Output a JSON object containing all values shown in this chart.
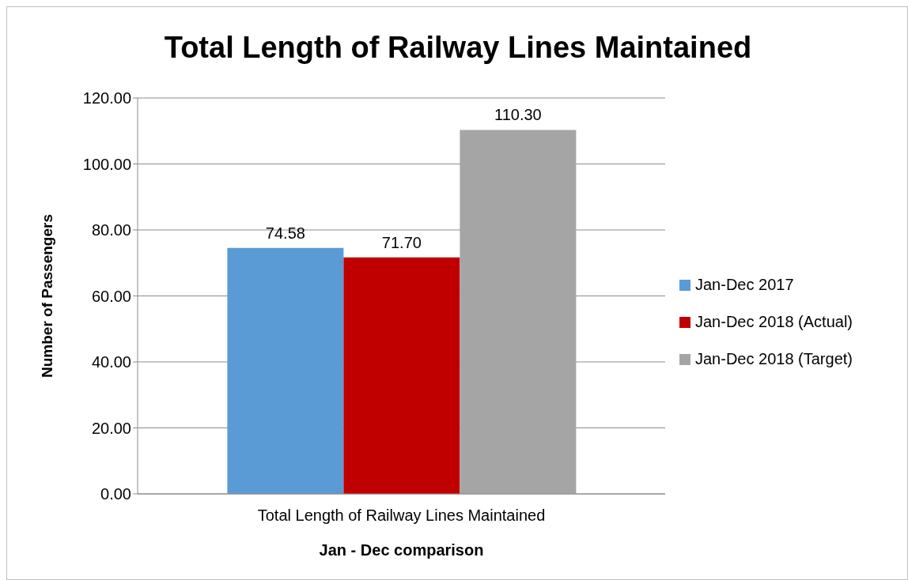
{
  "chart_data": {
    "type": "bar",
    "title": "Total Length of Railway Lines Maintained",
    "xlabel": "Jan - Dec comparison",
    "ylabel": "Number of Passengers",
    "categories": [
      "Total Length of Railway Lines Maintained"
    ],
    "series": [
      {
        "name": "Jan-Dec 2017",
        "color": "#5b9bd5",
        "values": [
          74.58
        ],
        "value_labels": [
          "74.58"
        ]
      },
      {
        "name": "Jan-Dec 2018 (Actual)",
        "color": "#c00000",
        "values": [
          71.7
        ],
        "value_labels": [
          "71.70"
        ]
      },
      {
        "name": "Jan-Dec 2018 (Target)",
        "color": "#a5a5a5",
        "values": [
          110.3
        ],
        "value_labels": [
          "110.30"
        ]
      }
    ],
    "ylim": [
      0,
      120
    ],
    "yticks": [
      {
        "value": 0,
        "label": "0.00"
      },
      {
        "value": 20,
        "label": "20.00"
      },
      {
        "value": 40,
        "label": "40.00"
      },
      {
        "value": 60,
        "label": "60.00"
      },
      {
        "value": 80,
        "label": "80.00"
      },
      {
        "value": 100,
        "label": "100.00"
      },
      {
        "value": 120,
        "label": "120.00"
      }
    ],
    "grid": "y",
    "legend": "right"
  }
}
